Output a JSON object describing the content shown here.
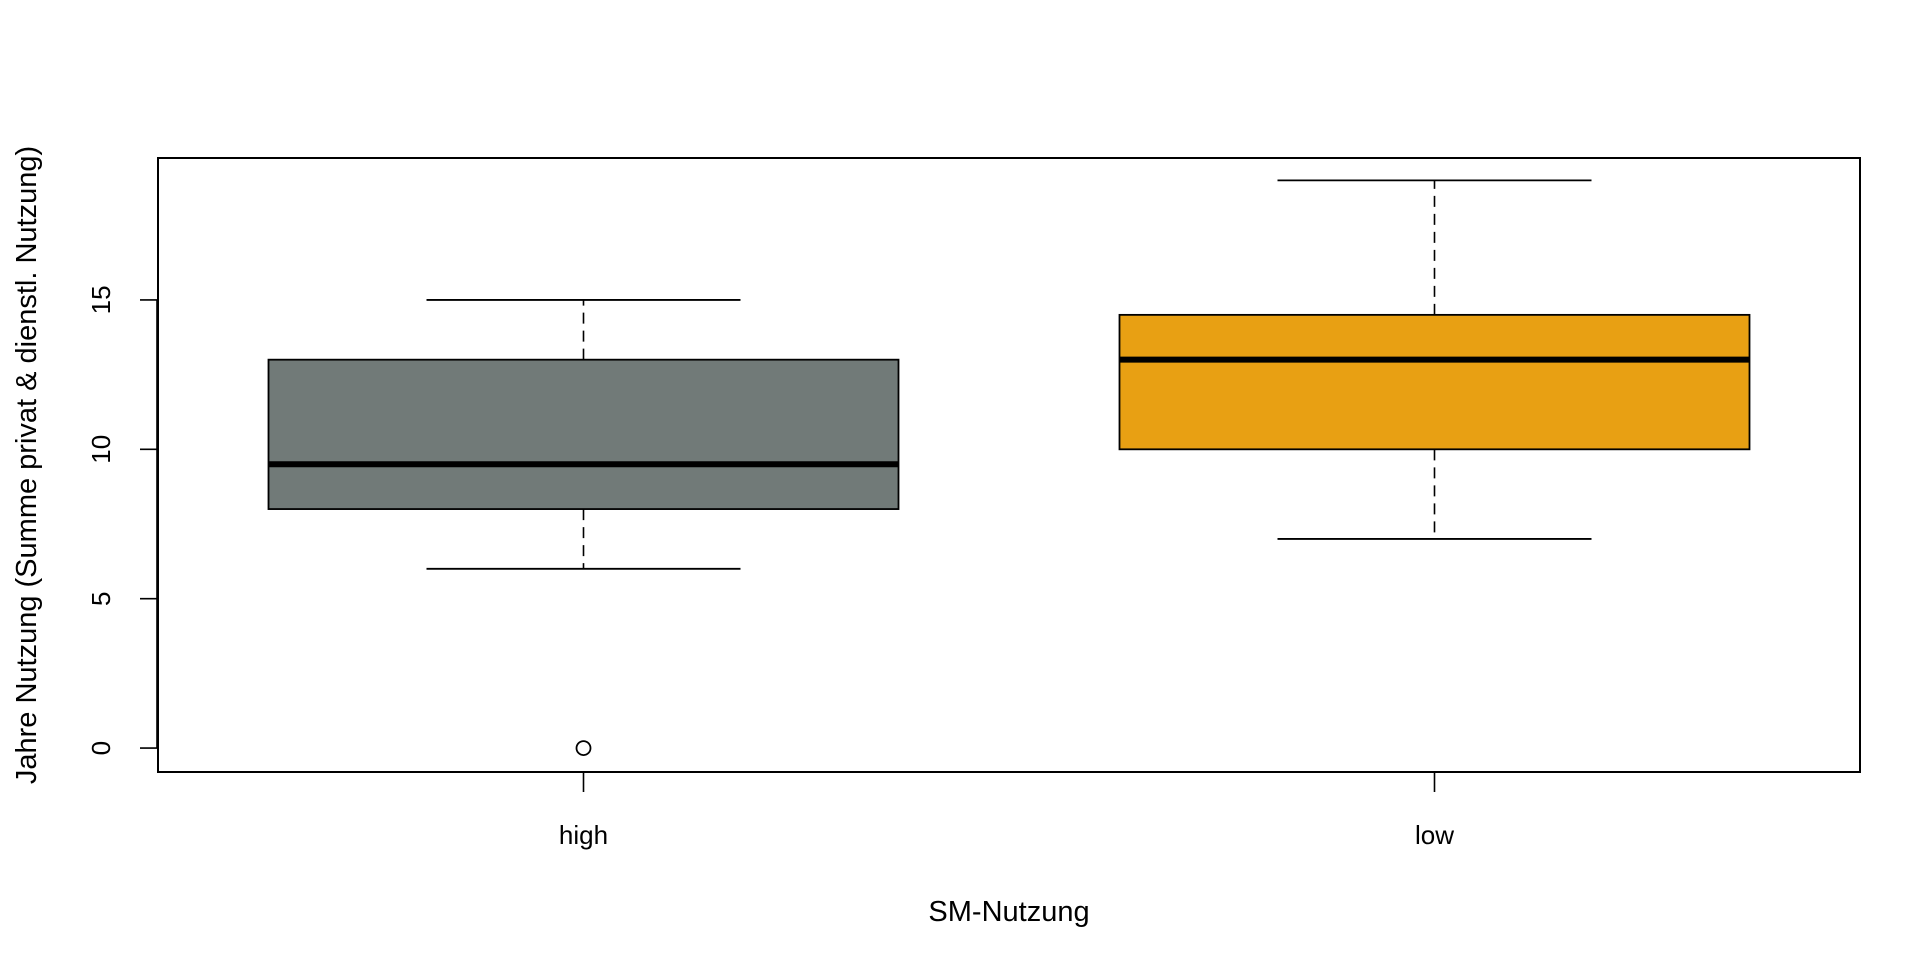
{
  "chart_data": {
    "type": "boxplot",
    "title": "",
    "xlabel": "SM-Nutzung",
    "ylabel": "Jahre Nutzung (Summe privat & dienstl. Nutzung)",
    "ylim": [
      -0.8,
      19.75
    ],
    "yticks": [
      0,
      5,
      10,
      15
    ],
    "grid": false,
    "legend": "none",
    "categories": [
      "high",
      "low"
    ],
    "boxes": [
      {
        "category": "high",
        "whisker_low": 6,
        "q1": 8,
        "median": 9.5,
        "q3": 13,
        "whisker_high": 15,
        "outliers": [
          0
        ],
        "color": "#717a78"
      },
      {
        "category": "low",
        "whisker_low": 7,
        "q1": 10,
        "median": 13,
        "q3": 14.5,
        "whisker_high": 19,
        "outliers": [],
        "color": "#e8a013"
      }
    ]
  }
}
